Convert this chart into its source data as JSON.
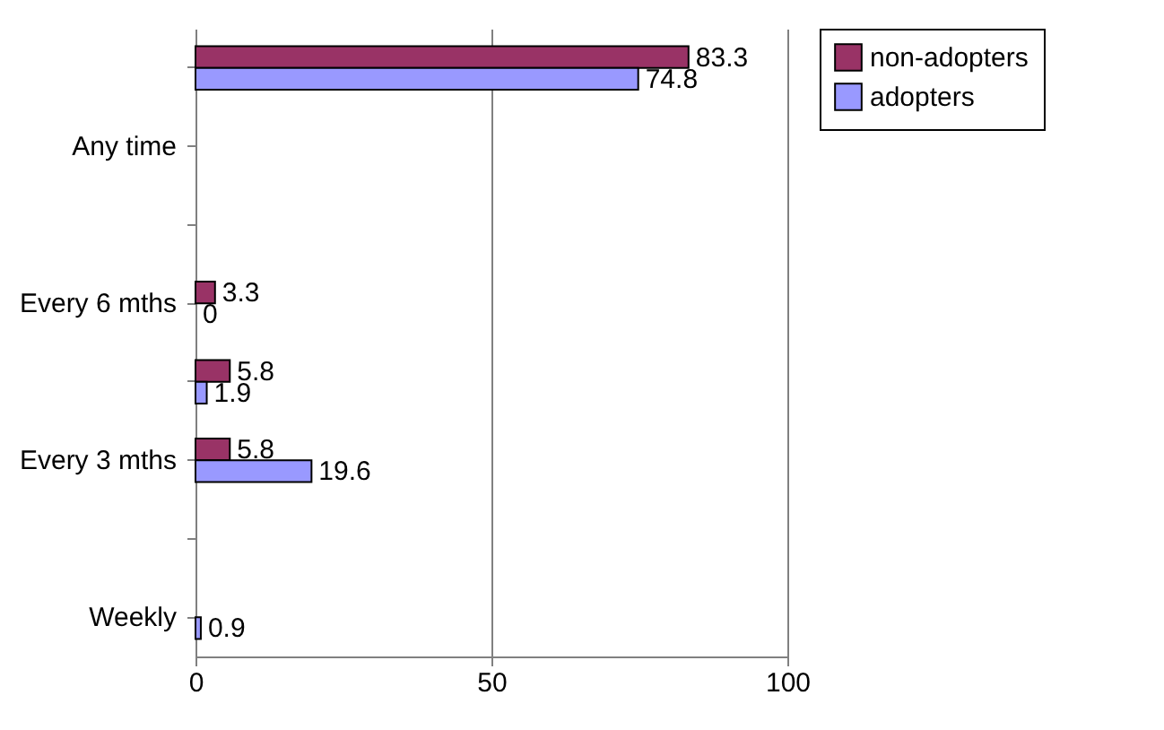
{
  "chart_data": {
    "type": "bar",
    "orientation": "horizontal",
    "categories": [
      null,
      "Any time",
      null,
      "Every 6 mths",
      null,
      "Every 3 mths",
      null,
      "Weekly"
    ],
    "series": [
      {
        "name": "non-adopters",
        "color": "#993366",
        "values": [
          83.3,
          null,
          null,
          3.3,
          5.8,
          5.8,
          null,
          null
        ]
      },
      {
        "name": "adopters",
        "color": "#9999ff",
        "values": [
          74.8,
          null,
          null,
          0,
          1.9,
          19.6,
          null,
          0.9
        ]
      }
    ],
    "xlim": [
      0,
      100
    ],
    "xticks": [
      0,
      50,
      100
    ],
    "grid": "x",
    "legend": "right",
    "data_labels": true
  }
}
